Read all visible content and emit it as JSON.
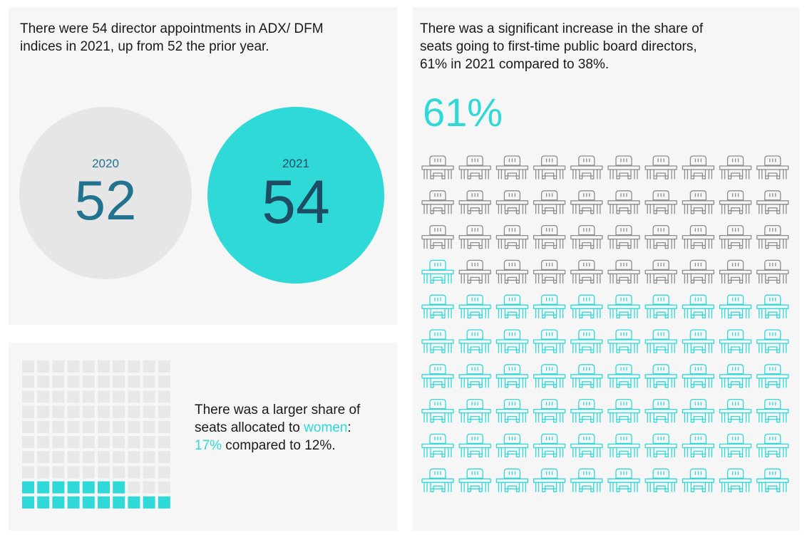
{
  "panels": {
    "appointments": {
      "text": "There were 54 director appointments in ADX/ DFM indices in 2021, up from 52 the prior year.",
      "circles": [
        {
          "year": "2020",
          "value": "52"
        },
        {
          "year": "2021",
          "value": "54"
        }
      ]
    },
    "first_time": {
      "text": "There was a significant increase in the share of seats going to first-time public board directors, 61% in 2021 compared to 38%.",
      "big_value": "61%"
    },
    "women": {
      "text_before": "There was a larger share of seats allocated to ",
      "text_highlight_word": "women",
      "text_colon": ":",
      "text_highlight_pct": "17%",
      "text_after": " compared to 12%."
    }
  },
  "colors": {
    "accent": "#2ed9d8",
    "grey_circle": "#e6e6e6",
    "dark_teal": "#1e4d63",
    "mid_teal": "#21738f",
    "empty_cell": "#e8e8e8",
    "chair_grey": "#8c8c8c"
  },
  "icon": "desk-chair-icon",
  "chart_data": [
    {
      "type": "bar",
      "categories": [
        "2020",
        "2021"
      ],
      "values": [
        52,
        54
      ]
    },
    {
      "type": "waffle",
      "unit": "percent",
      "total": 100,
      "highlighted": 61,
      "comparison": 38
    },
    {
      "type": "waffle",
      "unit": "percent",
      "total": 100,
      "highlighted": 17,
      "comparison": 12
    }
  ]
}
